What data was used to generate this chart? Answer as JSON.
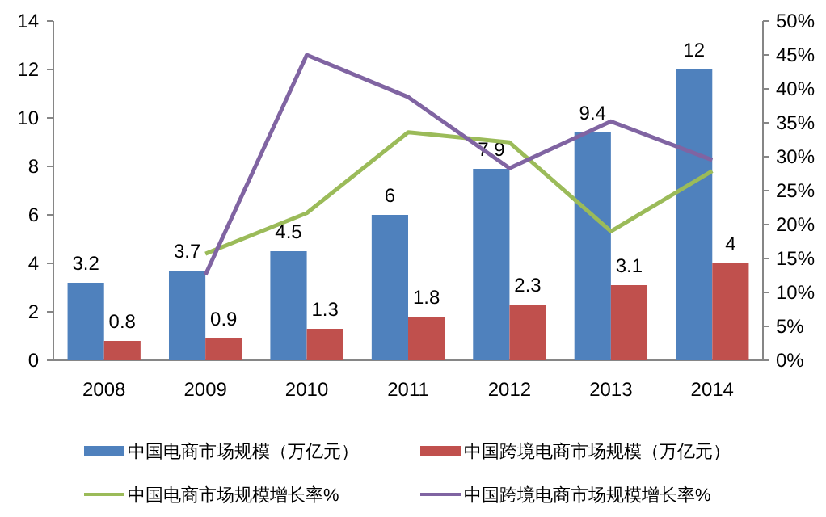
{
  "chart_data": {
    "type": "bar",
    "categories": [
      "2008",
      "2009",
      "2010",
      "2011",
      "2012",
      "2013",
      "2014"
    ],
    "series": [
      {
        "name": "中国电商市场规模（万亿元）",
        "color": "#4f81bd",
        "values": [
          3.2,
          3.7,
          4.5,
          6,
          7.9,
          9.4,
          12
        ],
        "value_labels": [
          "3.2",
          "3.7",
          "4.5",
          "6",
          "7.9",
          "9.4",
          "12"
        ]
      },
      {
        "name": "中国跨境电商市场规模（万亿元）",
        "color": "#c0504d",
        "values": [
          0.8,
          0.9,
          1.3,
          1.8,
          2.3,
          3.1,
          4
        ],
        "value_labels": [
          "0.8",
          "0.9",
          "1.3",
          "1.8",
          "2.3",
          "3.1",
          "4"
        ]
      },
      {
        "name": "中国电商市场规模增长率%",
        "type": "line",
        "axis": "y2",
        "color": "#9bbb59",
        "values": [
          null,
          15.7,
          21.7,
          33.6,
          32.1,
          19,
          27.9
        ]
      },
      {
        "name": "中国跨境电商市场规模增长率%",
        "type": "line",
        "axis": "y2",
        "color": "#8064a2",
        "values": [
          null,
          12.6,
          45,
          38.8,
          28.3,
          35.2,
          29.5
        ]
      }
    ],
    "ylim": [
      0,
      14
    ],
    "yticks": [
      0,
      2,
      4,
      6,
      8,
      10,
      12,
      14
    ],
    "y2lim": [
      0,
      50
    ],
    "y2ticks": [
      {
        "value": 0,
        "label": "0%"
      },
      {
        "value": 5,
        "label": "5%"
      },
      {
        "value": 10,
        "label": "10%"
      },
      {
        "value": 15,
        "label": "15%"
      },
      {
        "value": 20,
        "label": "20%"
      },
      {
        "value": 25,
        "label": "25%"
      },
      {
        "value": 30,
        "label": "30%"
      },
      {
        "value": 35,
        "label": "35%"
      },
      {
        "value": 40,
        "label": "40%"
      },
      {
        "value": 45,
        "label": "45%"
      },
      {
        "value": 50,
        "label": "50%"
      }
    ],
    "grid": false,
    "legend": "bottom"
  }
}
